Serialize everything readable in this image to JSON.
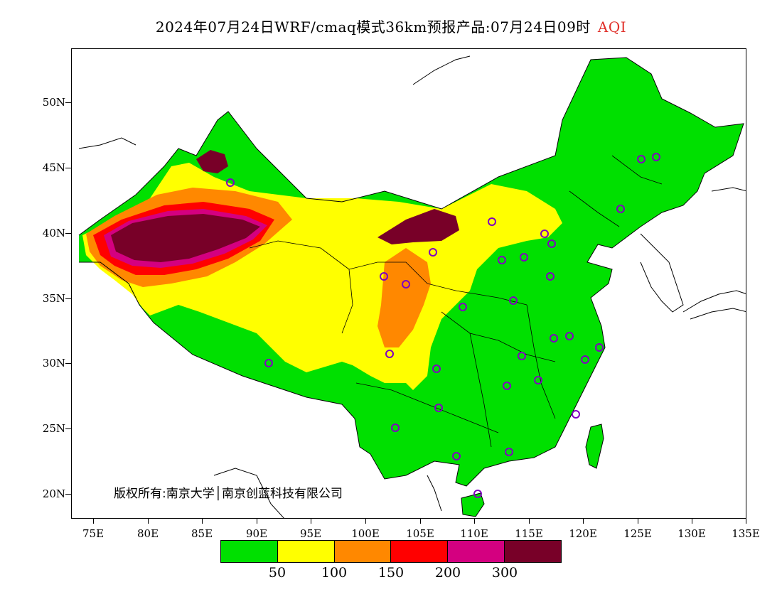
{
  "title": {
    "main": "2024年07月24日WRF/cmaq模式36km预报产品:07月24日09时",
    "variable": "AQI"
  },
  "axes": {
    "lat_labels": [
      "50N",
      "45N",
      "40N",
      "35N",
      "30N",
      "25N",
      "20N"
    ],
    "lon_labels": [
      "75E",
      "80E",
      "85E",
      "90E",
      "95E",
      "100E",
      "105E",
      "110E",
      "115E",
      "120E",
      "125E",
      "130E",
      "135E"
    ]
  },
  "copyright": "版权所有:南京大学│南京创蓝科技有限公司",
  "legend": {
    "colors": [
      "#00e000",
      "#ffff00",
      "#ff8800",
      "#ff0000",
      "#d40080",
      "#780028"
    ],
    "labels": [
      "50",
      "100",
      "150",
      "200",
      "300"
    ]
  },
  "map_colors": {
    "good": "#00e000",
    "moderate": "#ffff00",
    "usg": "#ff8800",
    "unhealthy": "#ff0000",
    "very_unhealthy": "#d40080",
    "hazardous": "#780028"
  },
  "station_marker": "purple-circle-icon"
}
